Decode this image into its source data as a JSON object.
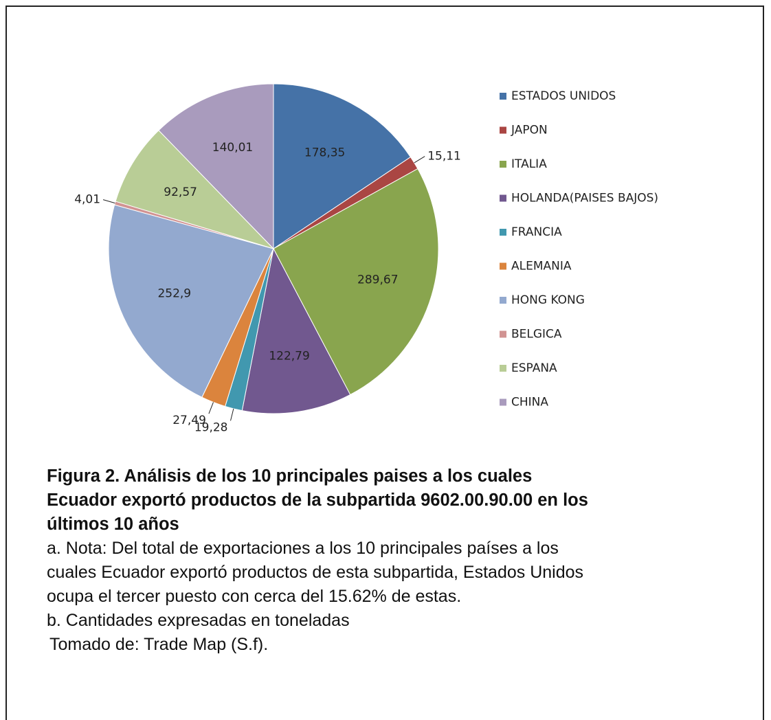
{
  "chart_data": {
    "type": "pie",
    "categories": [
      "ESTADOS UNIDOS",
      "JAPON",
      "ITALIA",
      "HOLANDA(PAISES BAJOS)",
      "FRANCIA",
      "ALEMANIA",
      "HONG KONG",
      "BELGICA",
      "ESPANA",
      "CHINA"
    ],
    "values": [
      178.35,
      15.11,
      289.67,
      122.79,
      19.28,
      27.49,
      252.9,
      4.01,
      92.57,
      140.01
    ],
    "value_labels": [
      "178,35",
      "15,11",
      "289,67",
      "122,79",
      "19,28",
      "27,49",
      "252,9",
      "4,01",
      "92,57",
      "140,01"
    ],
    "colors": [
      "#4572a7",
      "#aa4643",
      "#89a54e",
      "#71588f",
      "#4198af",
      "#db843d",
      "#93a9cf",
      "#d19392",
      "#b9cd96",
      "#a99bbd"
    ],
    "legend": "right",
    "title": "Figura 2. Análisis de los 10 principales paises a los cuales Ecuador exportó productos de la subpartida 9602.00.90.00 en los últimos 10 años",
    "notes": [
      "a. Nota: Del total de exportaciones a los 10 principales países a los cuales Ecuador exportó productos de esta subpartida, Estados Unidos ocupa el tercer puesto con cerca del 15.62% de estas.",
      "b. Cantidades expresadas en toneladas",
      "Tomado de: Trade Map (S.f)."
    ]
  }
}
